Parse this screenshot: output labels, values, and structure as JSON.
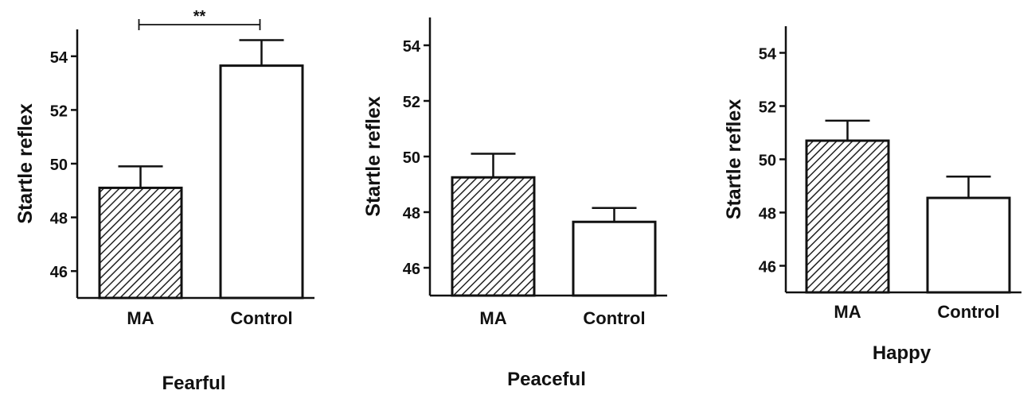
{
  "chart_data": [
    {
      "type": "bar",
      "title": "Fearful",
      "ylabel": "Startle reflex",
      "categories": [
        "MA",
        "Control"
      ],
      "values": [
        49.1,
        53.65
      ],
      "errors": [
        0.8,
        0.95
      ],
      "fills": [
        "hatched",
        "white"
      ],
      "ylim": [
        45.0,
        55.0
      ],
      "yticks": [
        "46",
        "48",
        "50",
        "52",
        "54"
      ],
      "annotation": {
        "text": "**",
        "between": [
          "MA",
          "Control"
        ]
      }
    },
    {
      "type": "bar",
      "title": "Peaceful",
      "ylabel": "Startle reflex",
      "categories": [
        "MA",
        "Control"
      ],
      "values": [
        49.25,
        47.65
      ],
      "errors": [
        0.85,
        0.5
      ],
      "fills": [
        "hatched",
        "white"
      ],
      "ylim": [
        45.0,
        55.0
      ],
      "yticks": [
        "46",
        "48",
        "50",
        "52",
        "54"
      ]
    },
    {
      "type": "bar",
      "title": "Happy",
      "ylabel": "Startle reflex",
      "categories": [
        "MA",
        "Control"
      ],
      "values": [
        50.7,
        48.55
      ],
      "errors": [
        0.75,
        0.8
      ],
      "fills": [
        "hatched",
        "white"
      ],
      "ylim": [
        45.0,
        55.0
      ],
      "yticks": [
        "46",
        "48",
        "50",
        "52",
        "54"
      ]
    }
  ]
}
